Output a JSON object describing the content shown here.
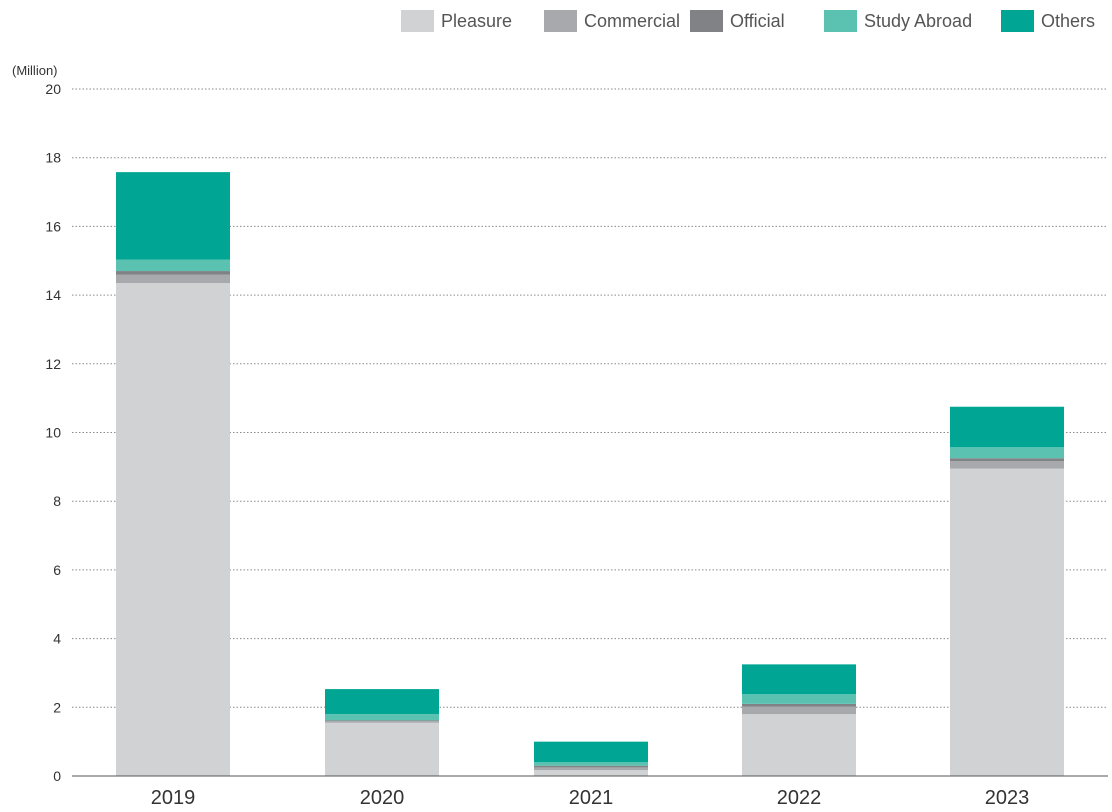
{
  "chart_data": {
    "type": "bar",
    "stacked": true,
    "unit_label": "(Million)",
    "categories": [
      "2019",
      "2020",
      "2021",
      "2022",
      "2023"
    ],
    "series": [
      {
        "name": "Pleasure",
        "color": "#d1d2d4",
        "values": [
          14.35,
          1.55,
          0.17,
          1.8,
          8.95
        ]
      },
      {
        "name": "Commercial",
        "color": "#a7a9ac",
        "values": [
          0.25,
          0.05,
          0.08,
          0.22,
          0.22
        ]
      },
      {
        "name": "Official",
        "color": "#808285",
        "values": [
          0.1,
          0.02,
          0.05,
          0.08,
          0.08
        ]
      },
      {
        "name": "Study Abroad",
        "color": "#5bc2b1",
        "values": [
          0.33,
          0.18,
          0.1,
          0.28,
          0.32
        ]
      },
      {
        "name": "Others",
        "color": "#00a693",
        "values": [
          2.55,
          0.73,
          0.6,
          0.87,
          1.18
        ]
      }
    ],
    "ylim": [
      0,
      20
    ],
    "yticks": [
      "0",
      "2",
      "4",
      "6",
      "8",
      "10",
      "12",
      "14",
      "16",
      "18",
      "20"
    ],
    "grid": true,
    "legend_position": "top-right"
  }
}
